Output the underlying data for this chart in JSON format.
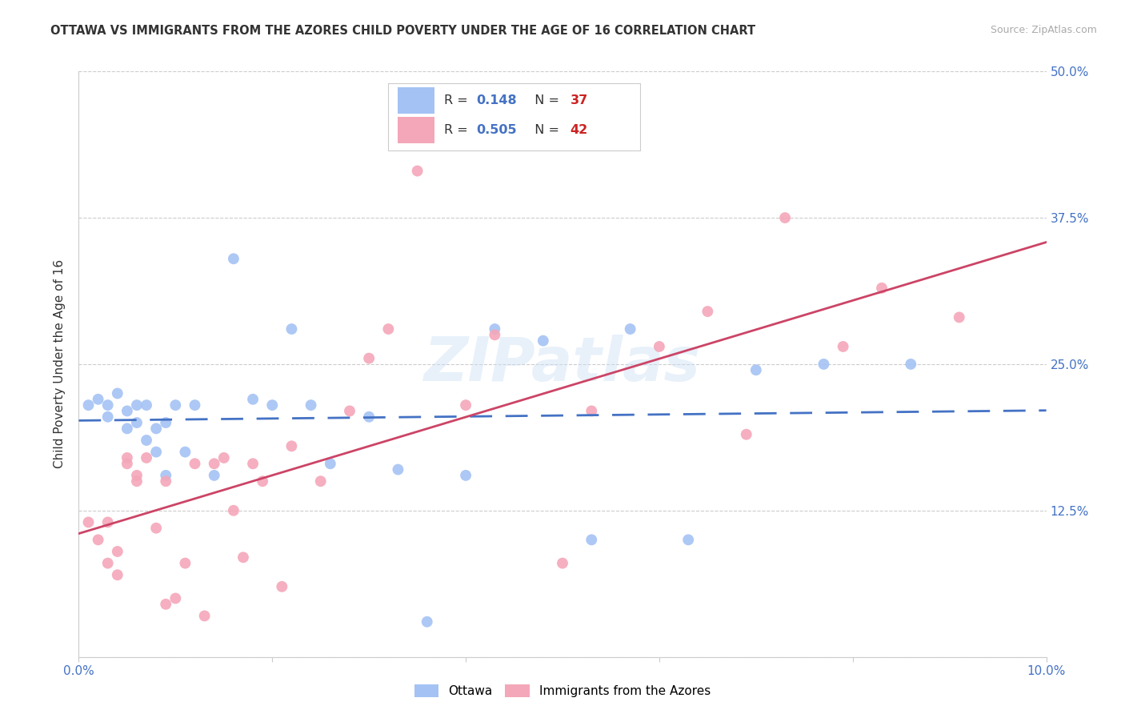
{
  "title": "OTTAWA VS IMMIGRANTS FROM THE AZORES CHILD POVERTY UNDER THE AGE OF 16 CORRELATION CHART",
  "source": "Source: ZipAtlas.com",
  "ylabel": "Child Poverty Under the Age of 16",
  "xlim": [
    0.0,
    0.1
  ],
  "ylim": [
    0.0,
    0.5
  ],
  "xticks": [
    0.0,
    0.02,
    0.04,
    0.06,
    0.08,
    0.1
  ],
  "xticklabels": [
    "0.0%",
    "",
    "",
    "",
    "",
    "10.0%"
  ],
  "yticks": [
    0.0,
    0.125,
    0.25,
    0.375,
    0.5
  ],
  "yticklabels": [
    "",
    "12.5%",
    "25.0%",
    "37.5%",
    "50.0%"
  ],
  "ottawa_color": "#a4c2f4",
  "azores_color": "#f4a7b9",
  "ottawa_line_color": "#4472c4",
  "azores_line_color": "#cc4466",
  "ottawa_R": 0.148,
  "ottawa_N": 37,
  "azores_R": 0.505,
  "azores_N": 42,
  "grid_color": "#cccccc",
  "watermark": "ZIPatlas",
  "title_color": "#333333",
  "source_color": "#aaaaaa",
  "axis_label_color": "#333333",
  "tick_color": "#4472c4",
  "ottawa_x": [
    0.001,
    0.002,
    0.003,
    0.003,
    0.004,
    0.005,
    0.005,
    0.006,
    0.006,
    0.007,
    0.007,
    0.008,
    0.008,
    0.009,
    0.009,
    0.01,
    0.011,
    0.012,
    0.014,
    0.016,
    0.018,
    0.02,
    0.022,
    0.024,
    0.026,
    0.03,
    0.033,
    0.036,
    0.04,
    0.043,
    0.048,
    0.053,
    0.057,
    0.063,
    0.07,
    0.077,
    0.086
  ],
  "ottawa_y": [
    0.215,
    0.22,
    0.205,
    0.215,
    0.225,
    0.195,
    0.21,
    0.2,
    0.215,
    0.215,
    0.185,
    0.195,
    0.175,
    0.2,
    0.155,
    0.215,
    0.175,
    0.215,
    0.155,
    0.34,
    0.22,
    0.215,
    0.28,
    0.215,
    0.165,
    0.205,
    0.16,
    0.03,
    0.155,
    0.28,
    0.27,
    0.1,
    0.28,
    0.1,
    0.245,
    0.25,
    0.25
  ],
  "azores_x": [
    0.001,
    0.002,
    0.003,
    0.003,
    0.004,
    0.004,
    0.005,
    0.005,
    0.006,
    0.006,
    0.007,
    0.008,
    0.009,
    0.009,
    0.01,
    0.011,
    0.012,
    0.013,
    0.014,
    0.015,
    0.016,
    0.017,
    0.018,
    0.019,
    0.021,
    0.022,
    0.025,
    0.028,
    0.03,
    0.032,
    0.035,
    0.04,
    0.043,
    0.05,
    0.053,
    0.06,
    0.065,
    0.069,
    0.073,
    0.079,
    0.083,
    0.091
  ],
  "azores_y": [
    0.115,
    0.1,
    0.115,
    0.08,
    0.07,
    0.09,
    0.165,
    0.17,
    0.155,
    0.15,
    0.17,
    0.11,
    0.15,
    0.045,
    0.05,
    0.08,
    0.165,
    0.035,
    0.165,
    0.17,
    0.125,
    0.085,
    0.165,
    0.15,
    0.06,
    0.18,
    0.15,
    0.21,
    0.255,
    0.28,
    0.415,
    0.215,
    0.275,
    0.08,
    0.21,
    0.265,
    0.295,
    0.19,
    0.375,
    0.265,
    0.315,
    0.29
  ]
}
